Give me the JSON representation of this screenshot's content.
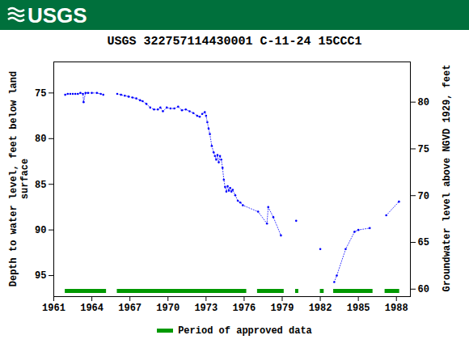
{
  "chart_data": {
    "type": "line",
    "header": "USGS",
    "title": "USGS 322757114430001 C-11-24 15CCC1",
    "y_label": "Depth to water level, feet below land\nsurface",
    "y2_label": "Groundwater level above NGVD 1929, feet",
    "x": [
      1961.9,
      1962.1,
      1962.3,
      1962.5,
      1962.7,
      1962.9,
      1963.1,
      1963.3,
      1963.35,
      1963.5,
      1963.7,
      1964.0,
      1964.4,
      1964.7,
      1964.9,
      null,
      1966.0,
      1966.3,
      1966.6,
      1966.9,
      1967.2,
      1967.5,
      1967.8,
      1968.0,
      1968.3,
      1968.6,
      1968.9,
      1969.2,
      1969.4,
      1969.6,
      1969.9,
      1970.2,
      1970.5,
      1970.8,
      1971.1,
      1971.4,
      1971.7,
      1972.0,
      1972.3,
      1972.5,
      1972.7,
      1972.9,
      1973.0,
      1973.1,
      1973.2,
      1973.3,
      1973.45,
      1973.6,
      1973.7,
      1973.8,
      1973.9,
      1974.0,
      1974.1,
      1974.2,
      1974.3,
      1974.4,
      1974.5,
      1974.6,
      1974.7,
      1974.8,
      1974.9,
      1975.0,
      1975.1,
      1975.3,
      1975.5,
      1975.7,
      1975.9,
      1977.1,
      1977.8,
      1977.9,
      1978.3,
      1978.9,
      null,
      1980.1,
      null,
      1982.0,
      null,
      1983.1,
      1983.3,
      1984.0,
      1984.7,
      1985.0,
      1985.9,
      null,
      1987.2,
      1988.2
    ],
    "values": [
      75.2,
      75.1,
      75.1,
      75.1,
      75.1,
      75.1,
      75.0,
      75.1,
      76.0,
      75.0,
      75.0,
      75.0,
      75.0,
      75.1,
      75.2,
      null,
      75.1,
      75.2,
      75.3,
      75.4,
      75.5,
      75.6,
      75.8,
      75.9,
      76.2,
      76.6,
      76.8,
      76.8,
      76.6,
      77.0,
      76.6,
      76.7,
      76.7,
      76.5,
      76.9,
      76.8,
      77.0,
      77.2,
      77.5,
      77.6,
      77.3,
      77.1,
      77.5,
      78.2,
      78.9,
      79.5,
      80.8,
      81.5,
      81.9,
      82.3,
      81.8,
      82.6,
      81.9,
      82.3,
      83.2,
      84.5,
      85.3,
      85.8,
      85.2,
      85.7,
      85.4,
      85.8,
      85.6,
      86.2,
      86.8,
      87.0,
      87.3,
      88.0,
      89.3,
      87.5,
      88.6,
      90.6,
      null,
      89.0,
      null,
      92.1,
      null,
      95.7,
      95.0,
      92.1,
      90.2,
      90.0,
      89.8,
      null,
      88.4,
      86.9
    ],
    "color": "#0000ff",
    "marker": "dot",
    "line_style": "dotted",
    "xlim": [
      1961,
      1989.1
    ],
    "xticks": [
      1961,
      1964,
      1967,
      1970,
      1973,
      1976,
      1979,
      1982,
      1985,
      1988
    ],
    "ylim": [
      97.3,
      71.6
    ],
    "yticks": [
      75,
      80,
      85,
      90,
      95
    ],
    "y2lim": [
      59.2,
      84.3
    ],
    "y2ticks": [
      60,
      65,
      70,
      75,
      80
    ],
    "approved_periods": {
      "name": "Period of approved data",
      "color": "#009900",
      "start": [
        1961.9,
        1966.0,
        1977.05,
        1980.05,
        1982.0,
        1983.05,
        1987.1
      ],
      "end": [
        1965.15,
        1976.2,
        1979.15,
        1980.3,
        1982.3,
        1986.15,
        1988.25
      ]
    },
    "legend": "bottom"
  }
}
